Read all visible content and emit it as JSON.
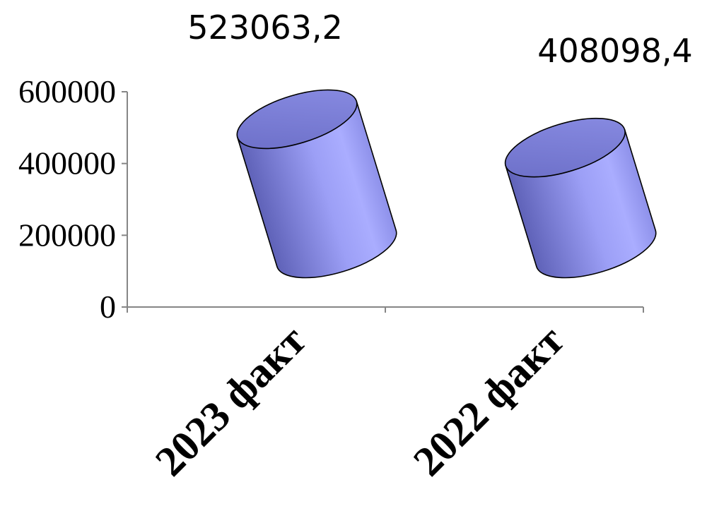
{
  "chart_data": {
    "type": "bar",
    "style": "3d-cylinder",
    "title": "",
    "xlabel": "",
    "ylabel": "",
    "categories": [
      "2023 факт",
      "2022 факт"
    ],
    "values": [
      523063.2,
      408098.4
    ],
    "data_labels": [
      "523063,2",
      "408098,4"
    ],
    "ylim": [
      0,
      600000
    ],
    "yticks": [
      0,
      200000,
      400000,
      600000
    ],
    "ytick_labels": [
      "0",
      "200000",
      "400000",
      "600000"
    ],
    "grid": false,
    "legend": "none",
    "colors": {
      "bar_fill_dark": "#6f72c8",
      "bar_fill_light": "#a8abff",
      "bar_top": "#7b7ed6",
      "axis": "#868686"
    }
  }
}
